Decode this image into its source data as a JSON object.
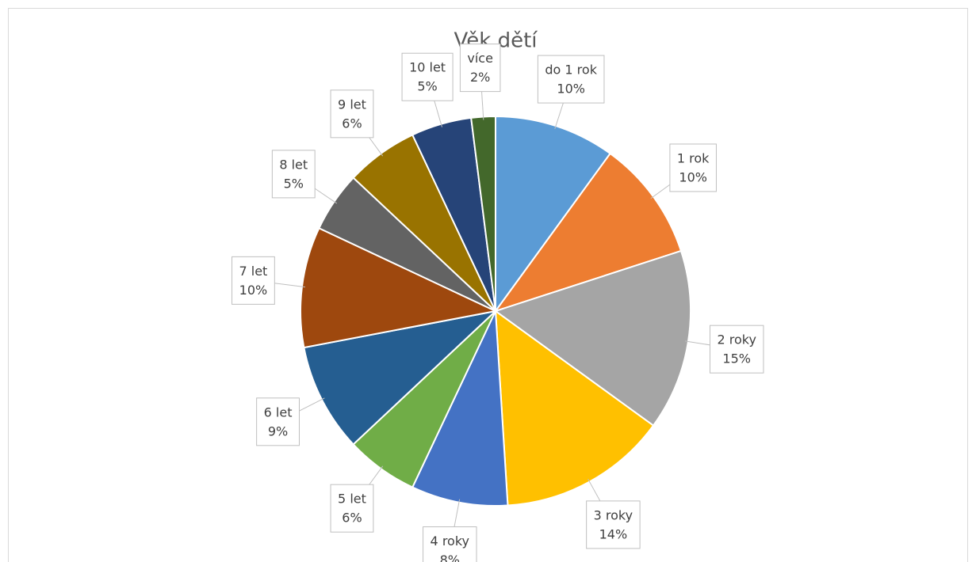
{
  "chart_data": {
    "type": "pie",
    "title": "Věk dětí",
    "categories": [
      "do 1 rok",
      "1 rok",
      "2 roky",
      "3 roky",
      "4 roky",
      "5 let",
      "6 let",
      "7 let",
      "8 let",
      "9 let",
      "10 let",
      "více"
    ],
    "values": [
      10,
      10,
      15,
      14,
      8,
      6,
      9,
      10,
      5,
      6,
      5,
      2
    ],
    "value_labels": [
      "10%",
      "10%",
      "15%",
      "14%",
      "8%",
      "6%",
      "9%",
      "10%",
      "5%",
      "6%",
      "5%",
      "2%"
    ],
    "colors": [
      "#5b9bd5",
      "#ed7d31",
      "#a5a5a5",
      "#ffc000",
      "#4472c4",
      "#70ad47",
      "#255e91",
      "#9e480e",
      "#636363",
      "#997300",
      "#264478",
      "#43682b"
    ]
  }
}
